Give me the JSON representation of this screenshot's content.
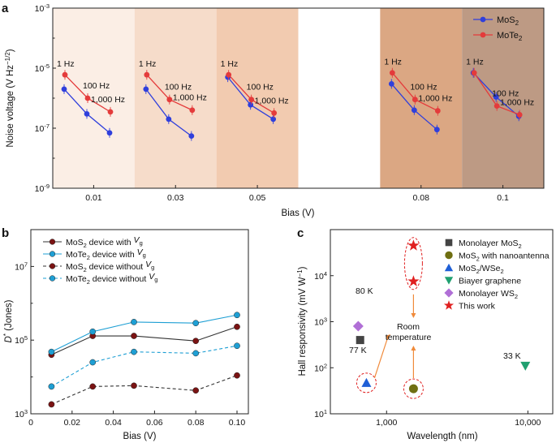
{
  "colors": {
    "mos2": "#2f3fdc",
    "mote2": "#e43b3b",
    "b_mos2": "#7a1313",
    "b_mote2": "#1e9fd4",
    "marker_mono_mos2": "#444444",
    "marker_nanoantenna": "#6f6f12",
    "marker_mos2_wse2": "#1f5fd6",
    "marker_graphene": "#20a070",
    "marker_ws2": "#b06fd6",
    "marker_this_work": "#e02020",
    "note_blue": "#3a78c8",
    "note_red": "#e02020"
  },
  "chart_data": [
    {
      "panel": "a",
      "type": "line",
      "ylabel": "Noise voltage (V Hz⁻¹ᐟ²)",
      "ylabel_parts": {
        "main": "Noise voltage (V Hz",
        "sup": "−1/2",
        "close": ")"
      },
      "xlabel": "Bias (V)",
      "yscale": "log",
      "ylim": [
        1e-09,
        0.001
      ],
      "yticks": [
        {
          "base": "10",
          "exp": "-3",
          "v": -3
        },
        {
          "base": "10",
          "exp": "-5",
          "v": -5
        },
        {
          "base": "10",
          "exp": "-7",
          "v": -7
        },
        {
          "base": "10",
          "exp": "-9",
          "v": -9
        }
      ],
      "groups": [
        {
          "bias": "0.01",
          "bg": "#fbeee5"
        },
        {
          "bias": "0.03",
          "bg": "#f6dcca"
        },
        {
          "bias": "0.05",
          "bg": "#f2cbb0"
        },
        {
          "bias": "",
          "bg": "#ffffff"
        },
        {
          "bias": "0.08",
          "bg": "#dba783"
        },
        {
          "bias": "0.1",
          "bg": "#bd9a84"
        }
      ],
      "freq_labels": [
        "1 Hz",
        "100 Hz",
        "1,000 Hz"
      ],
      "legend": [
        {
          "name": "MoS",
          "sub": "2"
        },
        {
          "name": "MoTe",
          "sub": "2"
        }
      ],
      "series": [
        {
          "name": "MoS2",
          "group_values": [
            [
              2e-06,
              3e-07,
              7e-08
            ],
            [
              2e-06,
              2e-07,
              5.5e-08
            ],
            [
              5e-06,
              6e-07,
              2e-07
            ],
            [
              3e-06,
              4e-07,
              9e-08
            ],
            [
              7e-06,
              1.1e-06,
              2.5e-07
            ]
          ]
        },
        {
          "name": "MoTe2",
          "group_values": [
            [
              6e-06,
              1e-06,
              3.5e-07
            ],
            [
              6e-06,
              9e-07,
              4e-07
            ],
            [
              6e-06,
              9e-07,
              3.2e-07
            ],
            [
              7e-06,
              9e-07,
              3.8e-07
            ],
            [
              7e-06,
              5.5e-07,
              2.8e-07
            ]
          ]
        }
      ]
    },
    {
      "panel": "b",
      "type": "line",
      "ylabel": "D* (Jones)",
      "ylabel_parts": {
        "main": "D",
        "sup": "*",
        "rest": " (Jones)"
      },
      "xlabel": "Bias (V)",
      "yscale": "log",
      "ylim": [
        1000.0,
        100000000.0
      ],
      "xlim": [
        0,
        0.1
      ],
      "x": [
        0.01,
        0.03,
        0.05,
        0.08,
        0.1
      ],
      "xticks": [
        "0",
        "0.02",
        "0.04",
        "0.06",
        "0.08",
        "0.10"
      ],
      "yticks": [
        {
          "base": "10",
          "exp": "3",
          "v": 3
        },
        {
          "base": "10",
          "exp": "5",
          "v": 5
        },
        {
          "base": "10",
          "exp": "7",
          "v": 7
        }
      ],
      "series": [
        {
          "name": "MoS2 device with Vg",
          "values": [
            40000,
            130000,
            130000,
            95000,
            230000
          ],
          "dashed": false
        },
        {
          "name": "MoTe2 device with Vg",
          "values": [
            48000,
            170000,
            310000,
            290000,
            480000
          ],
          "dashed": false
        },
        {
          "name": "MoS2 device without Vg",
          "values": [
            1800,
            5500,
            5800,
            4300,
            11000
          ],
          "dashed": true
        },
        {
          "name": "MoTe2 device without Vg",
          "values": [
            5500,
            25000,
            48000,
            44000,
            70000
          ],
          "dashed": true
        }
      ],
      "legend": [
        {
          "p1": "MoS",
          "s1": "2",
          "p2": " device with ",
          "v": "V",
          "g": "g"
        },
        {
          "p1": "MoTe",
          "s1": "2",
          "p2": " device with ",
          "v": "V",
          "g": "g"
        },
        {
          "p1": "MoS",
          "s1": "2",
          "p2": " device without ",
          "v": "V",
          "g": "g"
        },
        {
          "p1": "MoTe",
          "s1": "2",
          "p2": " device without ",
          "v": "V",
          "g": "g"
        }
      ]
    },
    {
      "panel": "c",
      "type": "scatter",
      "ylabel": "Hall responsivity (mV W⁻¹)",
      "ylabel_parts": {
        "main": "Hall responsivity (mV W",
        "sup": "−1",
        "close": ")"
      },
      "xlabel": "Wavelength (nm)",
      "xscale": "log",
      "yscale": "log",
      "xlim": [
        400,
        15000
      ],
      "ylim": [
        10,
        100000
      ],
      "xticks": [
        {
          "label": "1,000",
          "v": 1000
        },
        {
          "label": "10,000",
          "v": 10000
        }
      ],
      "yticks": [
        {
          "base": "10",
          "exp": "1",
          "v": 1
        },
        {
          "base": "10",
          "exp": "2",
          "v": 2
        },
        {
          "base": "10",
          "exp": "3",
          "v": 3
        },
        {
          "base": "10",
          "exp": "4",
          "v": 4
        }
      ],
      "points": [
        {
          "name": "Monolayer MoS2",
          "x": 650,
          "y": 400,
          "marker": "square"
        },
        {
          "name": "MoS2 with nanoantenna",
          "x": 1550,
          "y": 35,
          "marker": "circle"
        },
        {
          "name": "MoS2/WSe2",
          "x": 720,
          "y": 47,
          "marker": "triangle"
        },
        {
          "name": "Biayer graphene",
          "x": 9600,
          "y": 110,
          "marker": "triangle-down"
        },
        {
          "name": "Monolayer WS2",
          "x": 630,
          "y": 800,
          "marker": "diamond"
        },
        {
          "name": "This work",
          "x": 1550,
          "y": 45000,
          "marker": "star"
        },
        {
          "name": "This work",
          "x": 1550,
          "y": 7500,
          "marker": "star"
        }
      ],
      "legend": [
        {
          "p1": "Monolayer MoS",
          "s1": "2",
          "p2": ""
        },
        {
          "p1": "MoS",
          "s1": "2",
          "p2": " with nanoantenna"
        },
        {
          "p1": "MoS",
          "s1": "2",
          "p2": "/WSe",
          "s2": "2"
        },
        {
          "p1": "Biayer graphene",
          "s1": "",
          "p2": ""
        },
        {
          "p1": "Monolayer WS",
          "s1": "2",
          "p2": ""
        },
        {
          "p1": "This work",
          "s1": "",
          "p2": ""
        }
      ],
      "annotations": {
        "k80": "80 K",
        "k77": "77 K",
        "k33": "33 K",
        "room1": "Room",
        "room2": "temperature"
      }
    }
  ],
  "panel_letters": {
    "a": "a",
    "b": "b",
    "c": "c"
  }
}
